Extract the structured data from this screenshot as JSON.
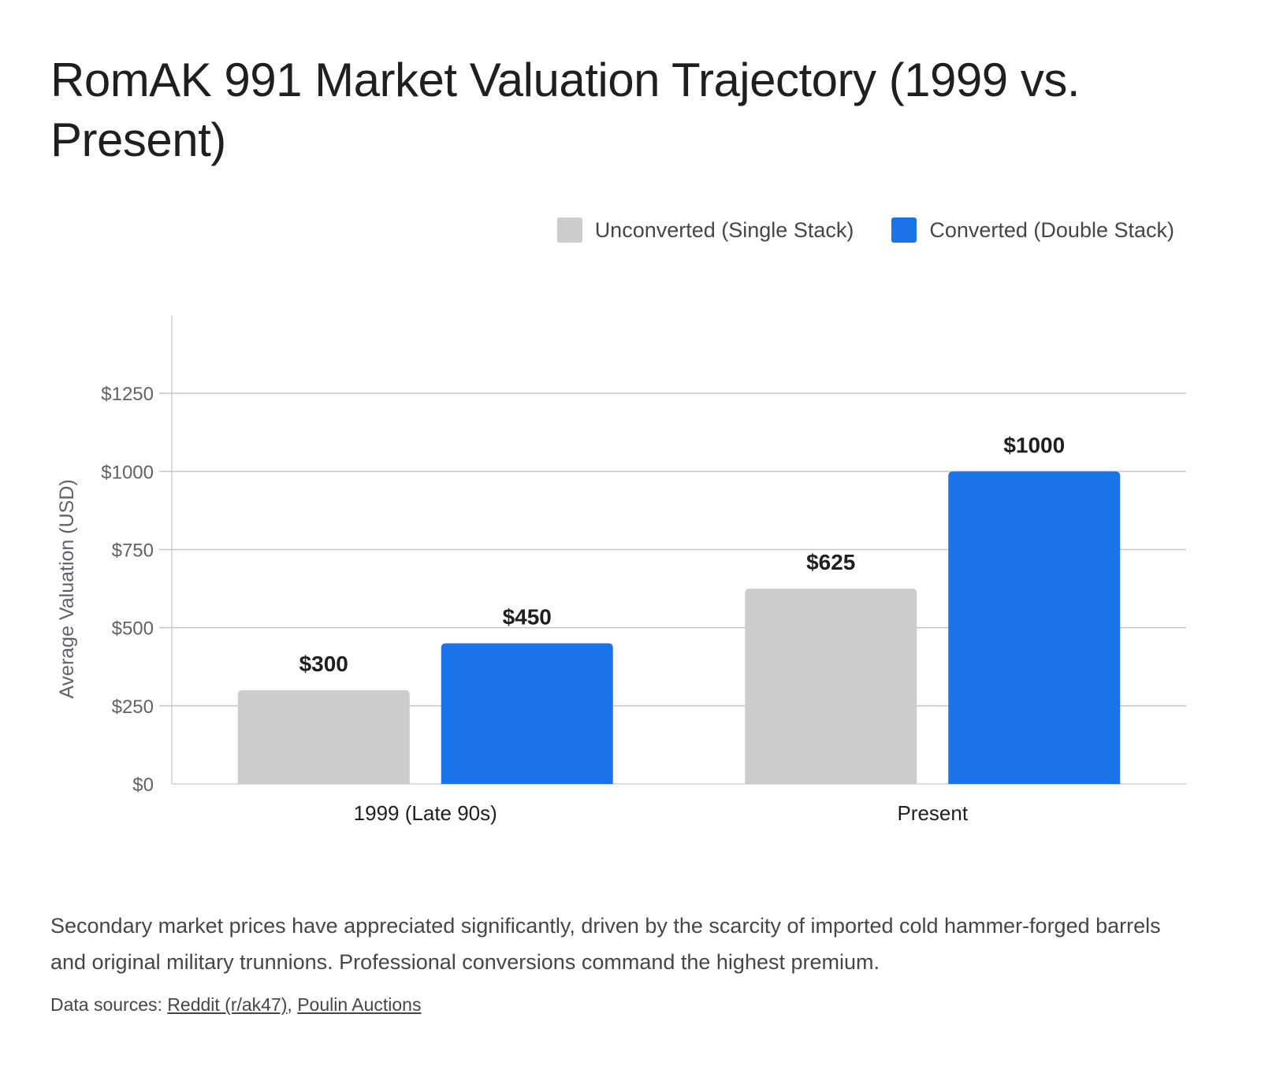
{
  "title": "RomAK 991 Market Valuation Trajectory (1999 vs. Present)",
  "legend": [
    {
      "label": "Unconverted (Single Stack)",
      "color": "#cccccc"
    },
    {
      "label": "Converted (Double Stack)",
      "color": "#1a73e8"
    }
  ],
  "chart_data": {
    "type": "bar",
    "categories": [
      "1999 (Late 90s)",
      "Present"
    ],
    "series": [
      {
        "name": "Unconverted (Single Stack)",
        "values": [
          300,
          625
        ],
        "color": "#cccccc",
        "data_labels": [
          "$300",
          "$625"
        ]
      },
      {
        "name": "Converted (Double Stack)",
        "values": [
          450,
          1000
        ],
        "color": "#1a73e8",
        "data_labels": [
          "$450",
          "$1000"
        ]
      }
    ],
    "ylabel": "Average Valuation (USD)",
    "xlabel": "",
    "ylim": [
      0,
      1500
    ],
    "yticks": [
      0,
      250,
      500,
      750,
      1000,
      1250
    ],
    "ytick_labels": [
      "$0",
      "$250",
      "$500",
      "$750",
      "$1000",
      "$1250"
    ],
    "grid": true,
    "legend_position": "top-right"
  },
  "caption": "Secondary market prices have appreciated significantly, driven by the scarcity of imported cold hammer-forged barrels and original military trunnions. Professional conversions command the highest premium.",
  "sources": {
    "prefix": "Data sources: ",
    "links": [
      "Reddit (r/ak47)",
      "Poulin Auctions"
    ],
    "separator": ", "
  }
}
